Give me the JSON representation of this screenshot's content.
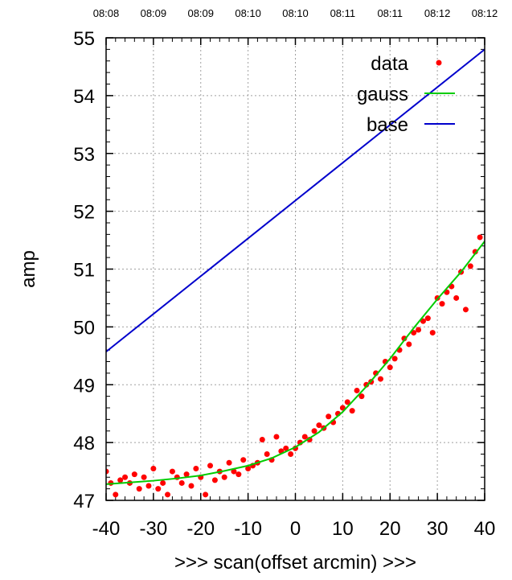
{
  "chart_data": {
    "type": "scatter",
    "title": "",
    "xlabel": ">>> scan(offset arcmin) >>>",
    "ylabel": "amp",
    "xlim": [
      -40,
      40
    ],
    "ylim": [
      47,
      55
    ],
    "grid": true,
    "legend_position": "top-right",
    "x_ticks": [
      "-40",
      "-30",
      "-20",
      "-10",
      "0",
      "10",
      "20",
      "30",
      "40"
    ],
    "y_ticks": [
      "47",
      "48",
      "49",
      "50",
      "51",
      "52",
      "53",
      "54",
      "55"
    ],
    "top_time_ticks": [
      "08:08",
      "08:09",
      "08:09",
      "08:10",
      "08:10",
      "08:11",
      "08:11",
      "08:12",
      "08:12"
    ],
    "series": [
      {
        "name": "data",
        "style": "points",
        "color": "#ff0000",
        "x": [
          -40,
          -39,
          -38,
          -37,
          -36,
          -35,
          -34,
          -33,
          -32,
          -31,
          -30,
          -29,
          -28,
          -27,
          -26,
          -25,
          -24,
          -23,
          -22,
          -21,
          -20,
          -19,
          -18,
          -17,
          -16,
          -15,
          -14,
          -13,
          -12,
          -11,
          -10,
          -9,
          -8,
          -7,
          -6,
          -5,
          -4,
          -3,
          -2,
          -1,
          0,
          1,
          2,
          3,
          4,
          5,
          6,
          7,
          8,
          9,
          10,
          11,
          12,
          13,
          14,
          15,
          16,
          17,
          18,
          19,
          20,
          21,
          22,
          23,
          24,
          25,
          26,
          27,
          28,
          29,
          30,
          31,
          32,
          33,
          34,
          35,
          36,
          37,
          38,
          39
        ],
        "y": [
          47.5,
          47.3,
          47.1,
          47.35,
          47.4,
          47.3,
          47.45,
          47.2,
          47.4,
          47.25,
          47.55,
          47.2,
          47.3,
          47.1,
          47.5,
          47.4,
          47.3,
          47.45,
          47.25,
          47.55,
          47.4,
          47.1,
          47.6,
          47.35,
          47.5,
          47.4,
          47.65,
          47.5,
          47.45,
          47.7,
          47.55,
          47.6,
          47.65,
          48.05,
          47.8,
          47.7,
          48.1,
          47.85,
          47.9,
          47.8,
          47.9,
          48.0,
          48.1,
          48.05,
          48.2,
          48.3,
          48.25,
          48.45,
          48.35,
          48.5,
          48.6,
          48.7,
          48.55,
          48.9,
          48.8,
          49.0,
          49.05,
          49.2,
          49.1,
          49.4,
          49.3,
          49.45,
          49.6,
          49.8,
          49.7,
          49.9,
          49.95,
          50.1,
          50.15,
          49.9,
          50.5,
          50.4,
          50.6,
          50.7,
          50.5,
          50.95,
          50.3,
          51.05,
          51.3,
          51.55
        ]
      },
      {
        "name": "gauss",
        "style": "line",
        "color": "#00cc00",
        "x": [
          -40,
          -35,
          -30,
          -25,
          -20,
          -15,
          -10,
          -5,
          0,
          5,
          10,
          15,
          20,
          25,
          30,
          35,
          40
        ],
        "y": [
          47.28,
          47.31,
          47.34,
          47.38,
          47.43,
          47.51,
          47.6,
          47.73,
          47.92,
          48.18,
          48.53,
          48.97,
          49.45,
          49.98,
          50.48,
          50.95,
          51.48
        ]
      },
      {
        "name": "base",
        "style": "line",
        "color": "#0000cc",
        "x": [
          -40,
          40
        ],
        "y": [
          49.57,
          54.8
        ]
      }
    ]
  }
}
